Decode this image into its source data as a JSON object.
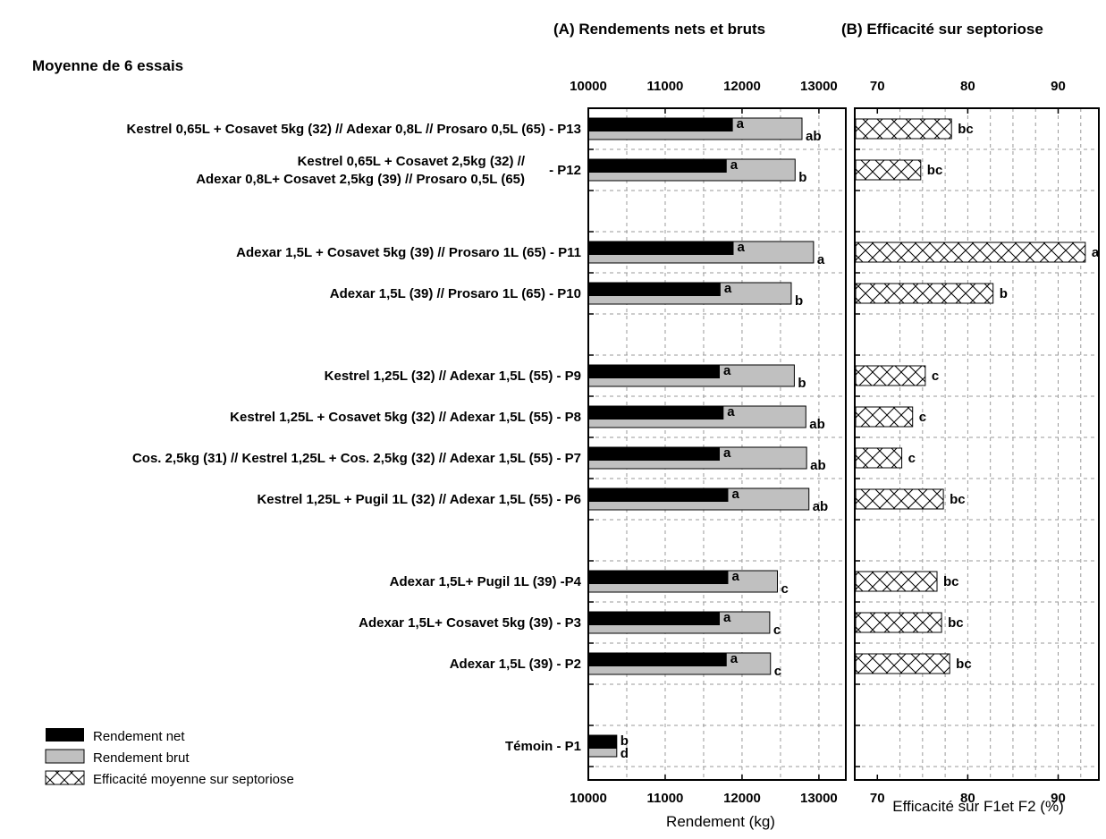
{
  "chart_data": {
    "type": "bar",
    "header_note": "Moyenne de 6 essais",
    "treatments": [
      {
        "label": [
          "Kestrel  0,65L + Cosavet 5kg (32) // Adexar 0,8L // Prosaro 0,5L (65) - P13"
        ],
        "net": 11880,
        "brut": 12780,
        "net_letter": "a",
        "brut_letter": "ab",
        "efficacite": 78.2,
        "eff_letter": "bc"
      },
      {
        "label": [
          "Kestrel  0,65L + Cosavet 2,5kg (32) //",
          "Adexar 0,8L+ Cosavet 2,5kg (39) // Prosaro 0,5L (65)"
        ],
        "suffix": "- P12",
        "net": 11800,
        "brut": 12690,
        "net_letter": "a",
        "brut_letter": "b",
        "efficacite": 74.8,
        "eff_letter": "bc"
      },
      {
        "label": [
          "Adexar 1,5L + Cosavet 5kg (39) // Prosaro 1L (65) - P11"
        ],
        "net": 11890,
        "brut": 12930,
        "net_letter": "a",
        "brut_letter": "a",
        "efficacite": 93.0,
        "eff_letter": "a"
      },
      {
        "label": [
          "Adexar 1,5L (39) // Prosaro 1L (65) - P10"
        ],
        "net": 11720,
        "brut": 12640,
        "net_letter": "a",
        "brut_letter": "b",
        "efficacite": 82.8,
        "eff_letter": "b"
      },
      {
        "label": [
          "Kestrel  1,25L (32) // Adexar 1,5L (55) - P9"
        ],
        "net": 11710,
        "brut": 12680,
        "net_letter": "a",
        "brut_letter": "b",
        "efficacite": 75.3,
        "eff_letter": "c"
      },
      {
        "label": [
          "Kestrel  1,25L + Cosavet 5kg (32) // Adexar 1,5L (55) - P8"
        ],
        "net": 11760,
        "brut": 12830,
        "net_letter": "a",
        "brut_letter": "ab",
        "efficacite": 73.9,
        "eff_letter": "c"
      },
      {
        "label": [
          "Cos. 2,5kg (31) // Kestrel  1,25L + Cos. 2,5kg (32) // Adexar 1,5L (55) - P7"
        ],
        "net": 11710,
        "brut": 12840,
        "net_letter": "a",
        "brut_letter": "ab",
        "efficacite": 72.7,
        "eff_letter": "c"
      },
      {
        "label": [
          "Kestrel  1,25L + Pugil 1L (32) // Adexar 1,5L (55) - P6"
        ],
        "net": 11820,
        "brut": 12870,
        "net_letter": "a",
        "brut_letter": "ab",
        "efficacite": 77.3,
        "eff_letter": "bc"
      },
      {
        "label": [
          "Adexar 1,5L+ Pugil 1L (39) -P4"
        ],
        "net": 11820,
        "brut": 12460,
        "net_letter": "a",
        "brut_letter": "c",
        "efficacite": 76.6,
        "eff_letter": "bc"
      },
      {
        "label": [
          "Adexar 1,5L+ Cosavet 5kg (39) - P3"
        ],
        "net": 11710,
        "brut": 12360,
        "net_letter": "a",
        "brut_letter": "c",
        "efficacite": 77.1,
        "eff_letter": "bc"
      },
      {
        "label": [
          "Adexar 1,5L (39) - P2"
        ],
        "net": 11800,
        "brut": 12370,
        "net_letter": "a",
        "brut_letter": "c",
        "efficacite": 78.0,
        "eff_letter": "bc"
      },
      {
        "label": [
          "Témoin - P1"
        ],
        "net": 10370,
        "brut": 10370,
        "net_letter": "b",
        "brut_letter": "d",
        "efficacite": null,
        "eff_letter": ""
      }
    ],
    "panel_a": {
      "title": "(A) Rendements nets et bruts",
      "xlabel": "Rendement (kg)",
      "xlim": [
        10000,
        13350
      ],
      "ticks": [
        10000,
        11000,
        12000,
        13000
      ],
      "tick_labels": [
        "10000",
        "11000",
        "12000",
        "13000"
      ]
    },
    "panel_b": {
      "title": "(B) Efficacité sur septoriose",
      "xlabel": "Efficacité sur F1et F2 (%)",
      "xlim": [
        67.5,
        94.5
      ],
      "ticks": [
        70,
        80,
        90
      ],
      "tick_labels": [
        "70",
        "80",
        "90"
      ]
    },
    "legend": {
      "position": "bottom-left",
      "entries": [
        {
          "label": "Rendement net",
          "color": "#000000"
        },
        {
          "label": "Rendement brut",
          "color": "#c0c0c0"
        },
        {
          "label": "Efficacité moyenne sur septoriose",
          "pattern": "crosshatch"
        }
      ]
    },
    "colors": {
      "net": "#000000",
      "brut": "#c0c0c0",
      "grid": "#9a9a9a"
    },
    "grid": true
  }
}
